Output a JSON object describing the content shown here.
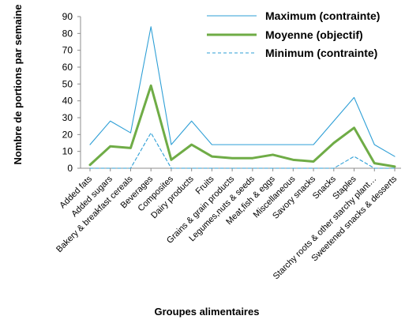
{
  "chart_data": {
    "type": "line",
    "xlabel": "Groupes alimentaires",
    "ylabel": "Nombre de portions par semaine",
    "ylim": [
      0,
      90
    ],
    "yticks": [
      0,
      10,
      20,
      30,
      40,
      50,
      60,
      70,
      80,
      90
    ],
    "grid": false,
    "legend_position": "top-right",
    "categories": [
      "Added fats",
      "Added sugars",
      "Bakery & breakfast cereals",
      "Beverages",
      "Composites",
      "Dairy products",
      "Fruits",
      "Grains & grain products",
      "Legumes,nuts & seeds",
      "Meat,fish & eggs",
      "Miscellaneous",
      "Savory snacks",
      "Snacks",
      "Staples",
      "Starchy roots & other starchy plant…",
      "Sweetened snacks & desserts"
    ],
    "series": [
      {
        "name": "Maximum (contrainte)",
        "color": "#2e9fd6",
        "style": "solid-thin",
        "values": [
          14,
          28,
          21,
          84,
          14,
          28,
          14,
          14,
          14,
          14,
          14,
          14,
          28,
          42,
          14,
          7
        ]
      },
      {
        "name": "Moyenne (objectif)",
        "color": "#6fac46",
        "style": "solid-thick",
        "values": [
          2,
          13,
          12,
          49,
          5,
          14,
          7,
          6,
          6,
          8,
          5,
          4,
          15,
          24,
          3,
          1
        ]
      },
      {
        "name": "Minimum (contrainte)",
        "color": "#2e9fd6",
        "style": "dashed",
        "values": [
          0,
          0,
          0,
          21,
          0,
          0,
          0,
          0,
          0,
          0,
          0,
          0,
          0,
          7,
          0,
          0
        ]
      }
    ]
  }
}
